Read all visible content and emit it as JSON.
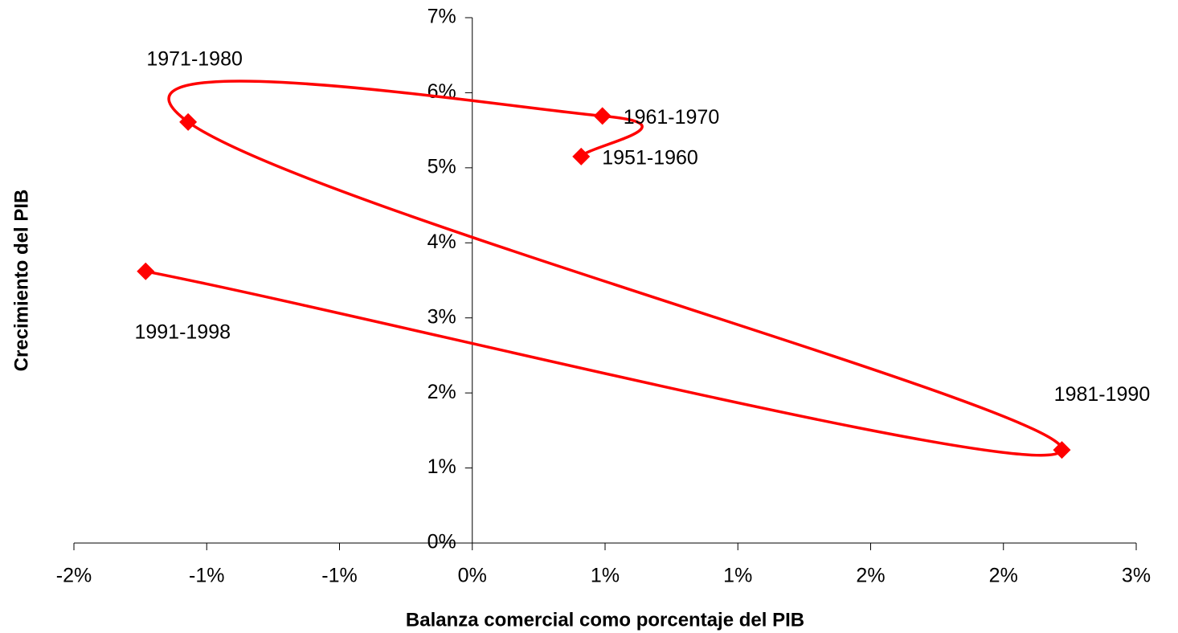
{
  "chart_data": {
    "type": "scatter",
    "x_label": "Balanza comercial como porcentaje del PIB",
    "y_label": "Crecimiento del PIB",
    "x": [
      0.41,
      0.49,
      -1.07,
      2.22,
      -1.23
    ],
    "values": [
      5.15,
      5.69,
      5.61,
      1.24,
      3.62
    ],
    "point_labels": [
      "1951-1960",
      "1961-1970",
      "1971-1980",
      "1981-1990",
      "1991-1998"
    ],
    "color": "#ff0000",
    "marker": "diamond",
    "smooth": true,
    "xlim": [
      -1.5,
      2.5
    ],
    "xticks": [
      {
        "value": -1.5,
        "label": "-2%"
      },
      {
        "value": -1.0,
        "label": "-1%"
      },
      {
        "value": -0.5,
        "label": "-1%"
      },
      {
        "value": 0,
        "label": "0%"
      },
      {
        "value": 0.5,
        "label": "1%"
      },
      {
        "value": 1.0,
        "label": "1%"
      },
      {
        "value": 1.5,
        "label": "2%"
      },
      {
        "value": 2.0,
        "label": "2%"
      },
      {
        "value": 2.5,
        "label": "3%"
      }
    ],
    "ylim": [
      0,
      7
    ],
    "yticks": [
      {
        "value": 0,
        "label": "0%"
      },
      {
        "value": 1,
        "label": "1%"
      },
      {
        "value": 2,
        "label": "2%"
      },
      {
        "value": 3,
        "label": "3%"
      },
      {
        "value": 4,
        "label": "4%"
      },
      {
        "value": 5,
        "label": "5%"
      },
      {
        "value": 6,
        "label": "6%"
      },
      {
        "value": 7,
        "label": "7%"
      }
    ]
  }
}
